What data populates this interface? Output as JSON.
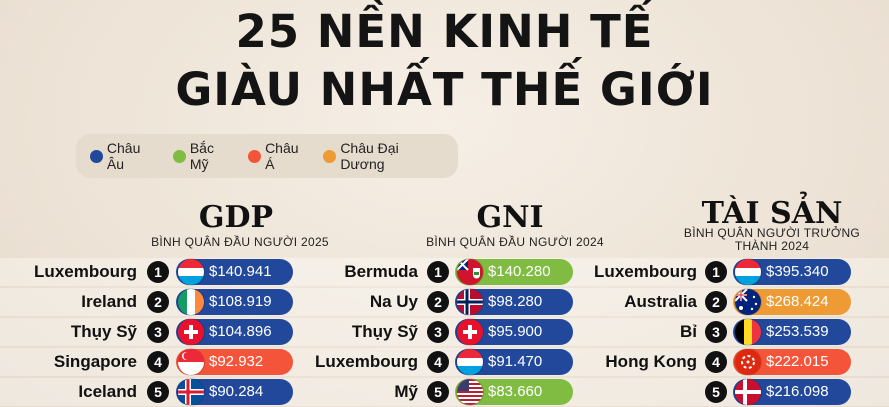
{
  "title_line1": "25 NỀN KINH TẾ",
  "title_line2": "GIÀU NHẤT THẾ GIỚI",
  "colors": {
    "europe": "#22489b",
    "north_america": "#7fbc41",
    "asia": "#f4553a",
    "oceania": "#ee9b35"
  },
  "legend": [
    {
      "label": "Châu Âu",
      "color": "#22489b"
    },
    {
      "label": "Bắc Mỹ",
      "color": "#7fbc41"
    },
    {
      "label": "Châu Á",
      "color": "#f4553a"
    },
    {
      "label": "Châu Đại Dương",
      "color": "#ee9b35"
    }
  ],
  "chart_data": [
    {
      "type": "table",
      "title": "GDP",
      "subtitle": "BÌNH QUÂN ĐẦU NGƯỜI 2025",
      "rows": [
        {
          "rank": "1",
          "country": "Luxembourg",
          "value": "$140.941",
          "region": "europe",
          "flag": "luxembourg-flag-icon"
        },
        {
          "rank": "2",
          "country": "Ireland",
          "value": "$108.919",
          "region": "europe",
          "flag": "ireland-flag-icon"
        },
        {
          "rank": "3",
          "country": "Thụy Sỹ",
          "value": "$104.896",
          "region": "europe",
          "flag": "switzerland-flag-icon"
        },
        {
          "rank": "4",
          "country": "Singapore",
          "value": "$92.932",
          "region": "asia",
          "flag": "singapore-flag-icon"
        },
        {
          "rank": "5",
          "country": "Iceland",
          "value": "$90.284",
          "region": "europe",
          "flag": "iceland-flag-icon"
        }
      ]
    },
    {
      "type": "table",
      "title": "GNI",
      "subtitle": "BÌNH QUÂN ĐẦU NGƯỜI 2024",
      "rows": [
        {
          "rank": "1",
          "country": "Bermuda",
          "value": "$140.280",
          "region": "north_america",
          "flag": "bermuda-flag-icon"
        },
        {
          "rank": "2",
          "country": "Na Uy",
          "value": "$98.280",
          "region": "europe",
          "flag": "norway-flag-icon"
        },
        {
          "rank": "3",
          "country": "Thụy Sỹ",
          "value": "$95.900",
          "region": "europe",
          "flag": "switzerland-flag-icon"
        },
        {
          "rank": "4",
          "country": "Luxembourg",
          "value": "$91.470",
          "region": "europe",
          "flag": "luxembourg-flag-icon"
        },
        {
          "rank": "5",
          "country": "Mỹ",
          "value": "$83.660",
          "region": "north_america",
          "flag": "usa-flag-icon"
        }
      ]
    },
    {
      "type": "table",
      "title": "TÀI SẢN",
      "subtitle": "BÌNH QUÂN NGƯỜI TRƯỞNG THÀNH 2024",
      "rows": [
        {
          "rank": "1",
          "country": "Luxembourg",
          "value": "$395.340",
          "region": "europe",
          "flag": "luxembourg-flag-icon"
        },
        {
          "rank": "2",
          "country": "Australia",
          "value": "$268.424",
          "region": "oceania",
          "flag": "australia-flag-icon"
        },
        {
          "rank": "3",
          "country": "Bỉ",
          "value": "$253.539",
          "region": "europe",
          "flag": "belgium-flag-icon"
        },
        {
          "rank": "4",
          "country": "Hong Kong",
          "value": "$222.015",
          "region": "asia",
          "flag": "hongkong-flag-icon"
        },
        {
          "rank": "5",
          "country": "",
          "value": "$216.098",
          "region": "europe",
          "flag": "denmark-flag-icon"
        }
      ]
    }
  ]
}
